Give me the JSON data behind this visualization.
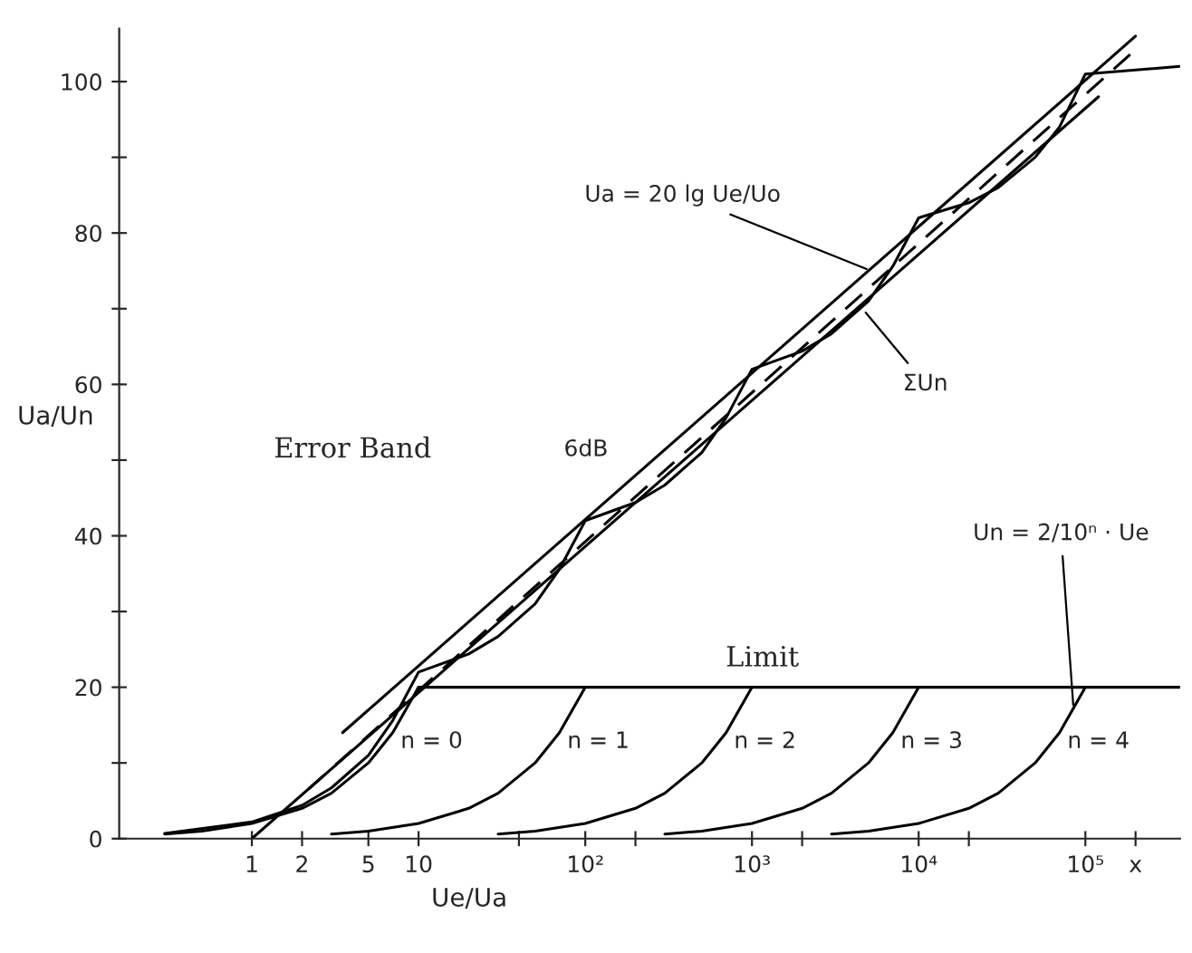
{
  "chart_data": {
    "type": "line",
    "xlabel": "Ue/Ua",
    "ylabel": "Ua/Un",
    "log": "x",
    "grid": false,
    "legend": false,
    "marker": "none",
    "xlim": [
      0.16,
      370000
    ],
    "ylim": [
      0,
      107
    ],
    "xticks": [
      1,
      2,
      5,
      {
        "value": 10,
        "label": "10"
      },
      {
        "value": 40,
        "label": null
      },
      {
        "value": 100,
        "label": "10²"
      },
      {
        "value": 200,
        "label": null
      },
      {
        "value": 1000,
        "label": "10³"
      },
      {
        "value": 2000,
        "label": null
      },
      {
        "value": 10000,
        "label": "10⁴"
      },
      {
        "value": 20000,
        "label": null
      },
      {
        "value": 100000,
        "label": "10⁵"
      },
      {
        "value": 200000,
        "label": "x"
      }
    ],
    "yticks": [
      0,
      {
        "value": 10,
        "label": null
      },
      20,
      {
        "value": 30,
        "label": null
      },
      40,
      {
        "value": 50,
        "label": null
      },
      60,
      {
        "value": 70,
        "label": null
      },
      80,
      {
        "value": 90,
        "label": null
      },
      100
    ],
    "series": [
      {
        "name": "n = 0",
        "color": "#000000",
        "x": [
          0.3,
          0.5,
          1,
          2,
          3,
          5,
          7,
          10
        ],
        "values": [
          0.6,
          1,
          2,
          4,
          6,
          10,
          14,
          20
        ]
      },
      {
        "name": "n = 1",
        "color": "#000000",
        "x": [
          3,
          5,
          10,
          20,
          30,
          50,
          70,
          100
        ],
        "values": [
          0.6,
          1,
          2,
          4,
          6,
          10,
          14,
          20
        ]
      },
      {
        "name": "n = 2",
        "color": "#000000",
        "x": [
          30,
          50,
          100,
          200,
          300,
          500,
          700,
          1000
        ],
        "values": [
          0.6,
          1,
          2,
          4,
          6,
          10,
          14,
          20
        ]
      },
      {
        "name": "n = 3",
        "color": "#000000",
        "x": [
          300,
          500,
          1000,
          2000,
          3000,
          5000,
          7000,
          10000
        ],
        "values": [
          0.6,
          1,
          2,
          4,
          6,
          10,
          14,
          20
        ]
      },
      {
        "name": "n = 4",
        "color": "#000000",
        "x": [
          3000,
          5000,
          10000,
          20000,
          30000,
          50000,
          70000,
          100000
        ],
        "values": [
          0.6,
          1,
          2,
          4,
          6,
          10,
          14,
          20
        ]
      },
      {
        "name": "Limit",
        "color": "#000000",
        "x": [
          10,
          370000
        ],
        "values": [
          20,
          20
        ]
      },
      {
        "color": "#000000",
        "x": [
          0.3,
          1,
          2,
          3,
          5,
          7,
          10,
          20,
          30,
          50,
          70,
          100,
          200,
          300,
          500,
          700,
          1000,
          2000,
          3000,
          5000,
          7000,
          10000,
          20000,
          30000,
          50000,
          70000,
          100000,
          370000
        ],
        "values": [
          0.7,
          2.2,
          4.4,
          6.7,
          11,
          15.6,
          22,
          24.4,
          26.7,
          31,
          35.6,
          42,
          44.4,
          46.7,
          51,
          55.6,
          62,
          64.4,
          66.7,
          71,
          75.6,
          82,
          84,
          86,
          90,
          94,
          101,
          102
        ]
      },
      {
        "color": "#000000",
        "line_style": "dashed",
        "x": [
          2.2,
          195000
        ],
        "values": [
          6.6,
          104
        ]
      },
      {
        "color": "#000000",
        "x": [
          1,
          120000
        ],
        "values": [
          0,
          98
        ]
      },
      {
        "color": "#000000",
        "x": [
          3.5,
          200000
        ],
        "values": [
          14,
          106
        ]
      }
    ],
    "annotations": [
      {
        "text": "Ua = 20 lg Ue/Uo",
        "x": 5200,
        "y": 75
      },
      {
        "text": "ΣUn",
        "x": 4600,
        "y": 70
      },
      {
        "text": "Un = 2/10ⁿ · Ue",
        "x": 85000,
        "y": 17
      },
      "6dB",
      "Error Band"
    ]
  }
}
